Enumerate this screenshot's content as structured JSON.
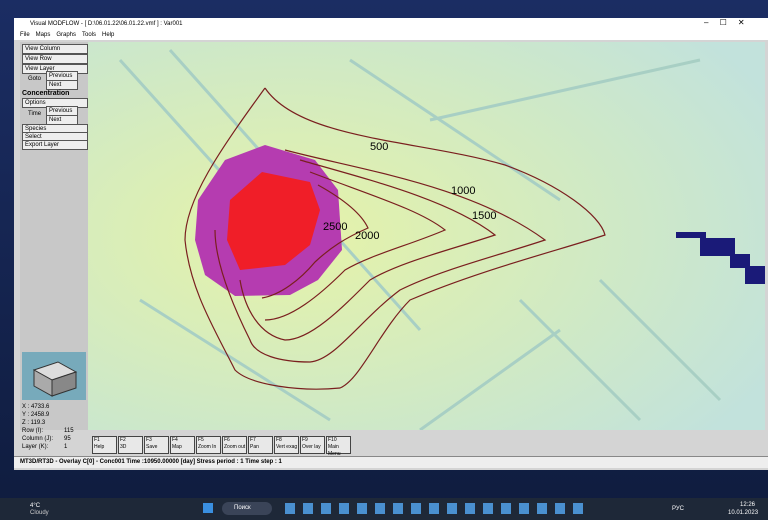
{
  "window": {
    "title": "Visual MODFLOW - [ D:\\06.01.22\\06.01.22.vmf ] : Var001",
    "menu": [
      "File",
      "Maps",
      "Graphs",
      "Tools",
      "Help"
    ]
  },
  "left_panel": {
    "view_column": "View Column",
    "view_row": "View Row",
    "view_layer": "View Layer",
    "goto": "Goto",
    "goto_previous": "Previous",
    "goto_next": "Next",
    "concentration": "Concentration",
    "options": "Options",
    "time": "Time",
    "time_previous": "Previous",
    "time_next": "Next",
    "species": "Species",
    "select": "Select",
    "export_layer": "Export Layer"
  },
  "coordinates": {
    "x": "X : 4733.6",
    "y": "Y : 2458.9",
    "z": "Z : 119.3",
    "row_label": "Row (I):",
    "row": "115",
    "column_label": "Column (J):",
    "column": "95",
    "layer_label": "Layer (K):",
    "layer": "1"
  },
  "toolbar": [
    {
      "key": "F1",
      "label": "Help"
    },
    {
      "key": "F2",
      "label": "3D"
    },
    {
      "key": "F3",
      "label": "Save"
    },
    {
      "key": "F4",
      "label": "Map"
    },
    {
      "key": "F5",
      "label": "Zoom In"
    },
    {
      "key": "F6",
      "label": "Zoom out"
    },
    {
      "key": "F7",
      "label": "Pan"
    },
    {
      "key": "F8",
      "label": "Vert exag"
    },
    {
      "key": "F9",
      "label": "Over lay"
    },
    {
      "key": "F10",
      "label": "Main Menu"
    }
  ],
  "status": "MT3D/RT3D - Overlay C[0] - Conc001 Time :10950.00000 [day] Stress period : 1 Time step : 1",
  "contour_labels": [
    "500",
    "1000",
    "1500",
    "2000",
    "2500"
  ],
  "taskbar": {
    "temperature": "4°C",
    "weather": "Cloudy",
    "search": "Поиск",
    "language": "РУС",
    "time": "12:26",
    "date": "10.01.2023"
  }
}
